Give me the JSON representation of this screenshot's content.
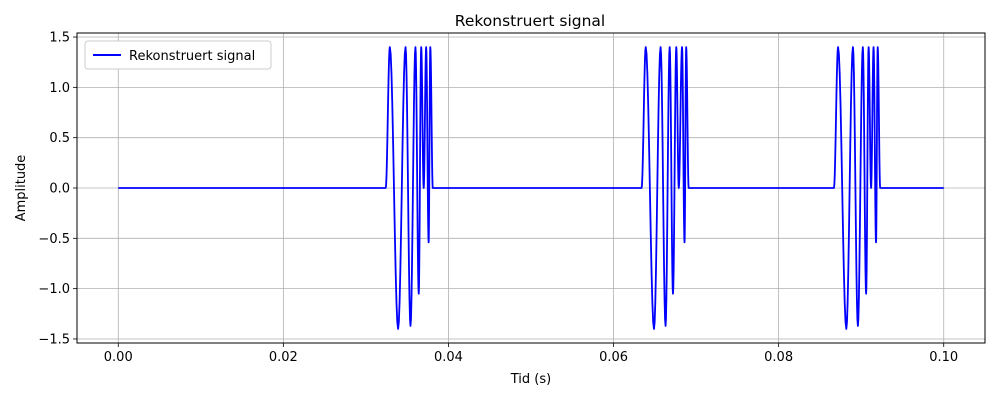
{
  "chart_data": {
    "type": "line",
    "title": "Rekonstruert signal",
    "xlabel": "Tid (s)",
    "ylabel": "Amplitude",
    "xlim": [
      -0.005,
      0.105
    ],
    "ylim": [
      -1.54,
      1.54
    ],
    "xticks": [
      0.0,
      0.02,
      0.04,
      0.06,
      0.08,
      0.1
    ],
    "xtick_labels": [
      "0.00",
      "0.02",
      "0.04",
      "0.06",
      "0.08",
      "0.10"
    ],
    "yticks": [
      -1.5,
      -1.0,
      -0.5,
      0.0,
      0.5,
      1.0,
      1.5
    ],
    "ytick_labels": [
      "−1.5",
      "−1.0",
      "−0.5",
      "0.0",
      "0.5",
      "1.0",
      "1.5"
    ],
    "grid": true,
    "legend": {
      "position": "top-left"
    },
    "series": [
      {
        "name": "Rekonstruert signal",
        "color": "#0000ff",
        "x": [
          0.0,
          0.0324,
          0.0329,
          0.0339,
          0.0348,
          0.0354,
          0.036,
          0.0364,
          0.0367,
          0.037,
          0.0373,
          0.0376,
          0.0378,
          0.0381,
          0.0384,
          0.1
        ],
        "y": [
          0.0,
          0.0,
          1.4,
          -1.4,
          1.4,
          -1.37,
          1.4,
          -1.05,
          1.4,
          0.0,
          1.4,
          -0.54,
          1.4,
          0.0,
          0.0,
          0.0
        ],
        "bursts": [
          {
            "x": [
              0.0,
              0.0324,
              0.0329,
              0.0339,
              0.0348,
              0.0354,
              0.036,
              0.0364,
              0.0367,
              0.037,
              0.0373,
              0.0376,
              0.0378,
              0.0381,
              0.0384
            ],
            "y": [
              0.0,
              0.0,
              1.4,
              -1.4,
              1.4,
              -1.37,
              1.4,
              -1.05,
              1.4,
              0.0,
              1.4,
              -0.54,
              1.4,
              0.0,
              0.0
            ]
          },
          {
            "x": [
              0.0384,
              0.0634,
              0.0639,
              0.0649,
              0.0657,
              0.0663,
              0.0668,
              0.0672,
              0.0676,
              0.0679,
              0.0683,
              0.0686,
              0.0688,
              0.0691,
              0.0694
            ],
            "y": [
              0.0,
              0.0,
              1.4,
              -1.4,
              1.4,
              -1.37,
              1.4,
              -1.05,
              1.4,
              0.0,
              1.4,
              -0.54,
              1.4,
              0.0,
              0.0
            ]
          },
          {
            "x": [
              0.0694,
              0.0867,
              0.0872,
              0.0882,
              0.089,
              0.0896,
              0.0902,
              0.0906,
              0.0909,
              0.0912,
              0.0915,
              0.0918,
              0.092,
              0.0923,
              0.0926,
              0.1
            ],
            "y": [
              0.0,
              0.0,
              1.4,
              -1.4,
              1.4,
              -1.37,
              1.4,
              -1.05,
              1.4,
              0.0,
              1.4,
              -0.54,
              1.4,
              0.0,
              0.0,
              0.0
            ]
          }
        ]
      }
    ]
  }
}
